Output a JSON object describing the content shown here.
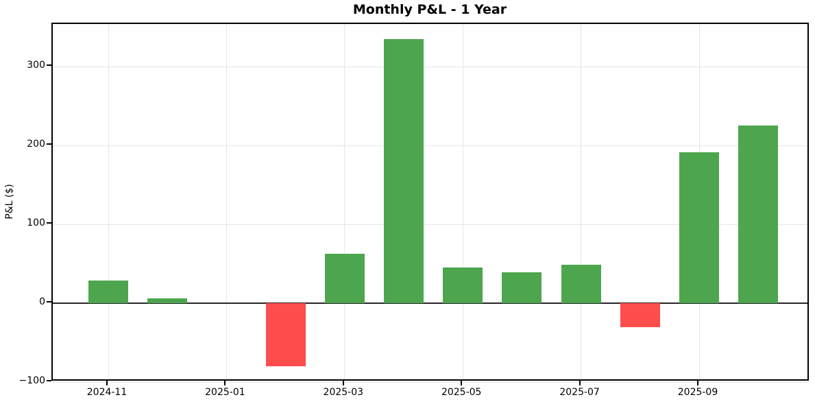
{
  "title": "Monthly P&L - 1 Year",
  "colors": {
    "positive_bar": "#4DA64D",
    "negative_bar": "#FF4D4D",
    "gridline": "#e6e6e6",
    "zero_line": "#262626",
    "axis_frame": "#000000"
  },
  "chart_data": {
    "type": "bar",
    "title": "Monthly P&L - 1 Year",
    "xlabel": "",
    "ylabel": "P&L ($)",
    "categories": [
      "2024-11",
      "2024-12",
      "2025-01",
      "2025-02",
      "2025-03",
      "2025-04",
      "2025-05",
      "2025-06",
      "2025-07",
      "2025-08",
      "2025-09",
      "2025-10"
    ],
    "values": [
      29,
      6,
      0,
      -80,
      63,
      335,
      45,
      39,
      49,
      -30,
      191,
      225
    ],
    "x_tick_labels": [
      "2024-11",
      "2025-01",
      "2025-03",
      "2025-05",
      "2025-07",
      "2025-09"
    ],
    "x_tick_indices": [
      0,
      2,
      4,
      6,
      8,
      10
    ],
    "y_ticks": [
      -100,
      0,
      100,
      200,
      300
    ],
    "y_tick_labels": [
      "−100",
      "0",
      "100",
      "200",
      "300"
    ],
    "ylim": [
      -100,
      354
    ],
    "grid": true,
    "legend": "none",
    "zero_line": true
  }
}
